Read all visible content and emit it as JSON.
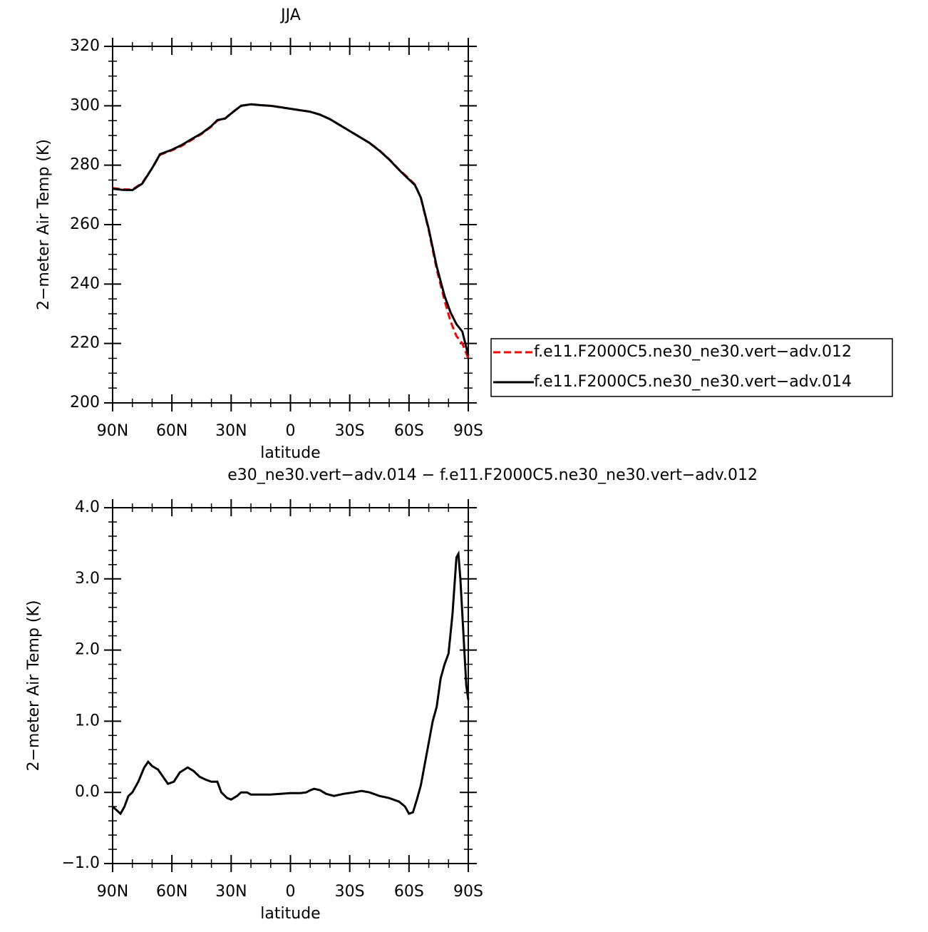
{
  "chart_data": [
    {
      "type": "line",
      "title": "JJA",
      "xlabel": "latitude",
      "ylabel": "2−meter Air Temp (K)",
      "xlim": [
        90,
        -90
      ],
      "xticks": [
        {
          "value": 90,
          "label": "90N"
        },
        {
          "value": 60,
          "label": "60N"
        },
        {
          "value": 30,
          "label": "30N"
        },
        0,
        {
          "value": -30,
          "label": "30S"
        },
        {
          "value": -60,
          "label": "60S"
        },
        {
          "value": -90,
          "label": "90S"
        }
      ],
      "ylim": [
        200,
        320
      ],
      "yticks": [
        200,
        220,
        240,
        260,
        280,
        300,
        320
      ],
      "legend": "right",
      "series": [
        {
          "name": "f.e11.F2000C5.ne30_ne30.vert−adv.012",
          "color": "#ff0000",
          "dash": true,
          "x": [
            90,
            85,
            80,
            75,
            70,
            66,
            60,
            55,
            50,
            45,
            40,
            37,
            33,
            30,
            25,
            20,
            15,
            10,
            5,
            0,
            -5,
            -10,
            -15,
            -20,
            -25,
            -30,
            -35,
            -40,
            -45,
            -50,
            -55,
            -60,
            -63,
            -66,
            -70,
            -74,
            -78,
            -81,
            -84,
            -87,
            -90
          ],
          "values": [
            272.3,
            271.9,
            271.8,
            274.0,
            279.0,
            283.5,
            285.0,
            286.5,
            288.5,
            290.5,
            293.0,
            295.0,
            295.8,
            297.5,
            300.0,
            300.5,
            300.2,
            300.0,
            299.5,
            299.0,
            298.5,
            298.0,
            297.0,
            295.5,
            293.5,
            291.5,
            289.5,
            287.5,
            285.0,
            282.0,
            278.5,
            275.5,
            273.5,
            269.0,
            258.0,
            245.0,
            234.5,
            227.5,
            222.5,
            220.0,
            215.0
          ]
        },
        {
          "name": "f.e11.F2000C5.ne30_ne30.vert−adv.014",
          "color": "#000000",
          "dash": false,
          "x": [
            90,
            85,
            80,
            75,
            70,
            66,
            60,
            55,
            50,
            45,
            40,
            37,
            33,
            30,
            25,
            20,
            15,
            10,
            5,
            0,
            -5,
            -10,
            -15,
            -20,
            -25,
            -30,
            -35,
            -40,
            -45,
            -50,
            -55,
            -60,
            -63,
            -66,
            -70,
            -74,
            -78,
            -81,
            -84,
            -87,
            -90
          ],
          "values": [
            272.1,
            271.7,
            271.6,
            273.8,
            279.0,
            283.7,
            285.2,
            286.8,
            288.8,
            290.7,
            293.2,
            295.2,
            295.7,
            297.4,
            300.0,
            300.5,
            300.2,
            300.0,
            299.5,
            299.0,
            298.5,
            298.0,
            297.0,
            295.5,
            293.5,
            291.5,
            289.5,
            287.5,
            284.9,
            281.9,
            278.4,
            275.2,
            273.3,
            269.1,
            258.5,
            246.0,
            236.0,
            230.5,
            226.5,
            224.0,
            216.0
          ]
        }
      ]
    },
    {
      "type": "line",
      "title": "e30_ne30.vert−adv.014 − f.e11.F2000C5.ne30_ne30.vert−adv.012",
      "xlabel": "latitude",
      "ylabel": "2−meter Air Temp (K)",
      "xlim": [
        90,
        -90
      ],
      "xticks": [
        {
          "value": 90,
          "label": "90N"
        },
        {
          "value": 60,
          "label": "60N"
        },
        {
          "value": 30,
          "label": "30N"
        },
        0,
        {
          "value": -30,
          "label": "30S"
        },
        {
          "value": -60,
          "label": "60S"
        },
        {
          "value": -90,
          "label": "90S"
        }
      ],
      "ylim": [
        -1,
        4
      ],
      "yticks": [
        {
          "value": -1,
          "label": "−1.0"
        },
        {
          "value": 0,
          "label": "0.0"
        },
        {
          "value": 1,
          "label": "1.0"
        },
        {
          "value": 2,
          "label": "2.0"
        },
        {
          "value": 3,
          "label": "3.0"
        },
        {
          "value": 4,
          "label": "4.0"
        }
      ],
      "series": [
        {
          "color": "#000000",
          "x": [
            90,
            88,
            86,
            84,
            82,
            80,
            77,
            74,
            72,
            70,
            67,
            64,
            62,
            59,
            56,
            52,
            49,
            46,
            43,
            40,
            37,
            35,
            32,
            30,
            27,
            25,
            22,
            20,
            15,
            10,
            5,
            0,
            -5,
            -8,
            -10,
            -12,
            -15,
            -18,
            -22,
            -27,
            -32,
            -36,
            -40,
            -45,
            -50,
            -55,
            -58,
            -60,
            -62,
            -64,
            -66,
            -68,
            -70,
            -72,
            -74,
            -76,
            -78,
            -80,
            -82,
            -84,
            -85,
            -86,
            -88,
            -89,
            -90
          ],
          "values": [
            -0.2,
            -0.25,
            -0.3,
            -0.2,
            -0.05,
            0.0,
            0.15,
            0.35,
            0.43,
            0.37,
            0.32,
            0.2,
            0.12,
            0.15,
            0.28,
            0.35,
            0.3,
            0.22,
            0.18,
            0.15,
            0.15,
            0.0,
            -0.08,
            -0.1,
            -0.05,
            0.0,
            0.0,
            -0.03,
            -0.03,
            -0.03,
            -0.02,
            -0.01,
            -0.01,
            0.0,
            0.03,
            0.05,
            0.03,
            -0.02,
            -0.05,
            -0.02,
            0.0,
            0.02,
            0.0,
            -0.05,
            -0.08,
            -0.13,
            -0.2,
            -0.3,
            -0.28,
            -0.1,
            0.1,
            0.4,
            0.7,
            1.0,
            1.2,
            1.6,
            1.8,
            1.95,
            2.5,
            3.3,
            3.35,
            3.0,
            2.0,
            1.5,
            1.3
          ]
        }
      ]
    }
  ]
}
